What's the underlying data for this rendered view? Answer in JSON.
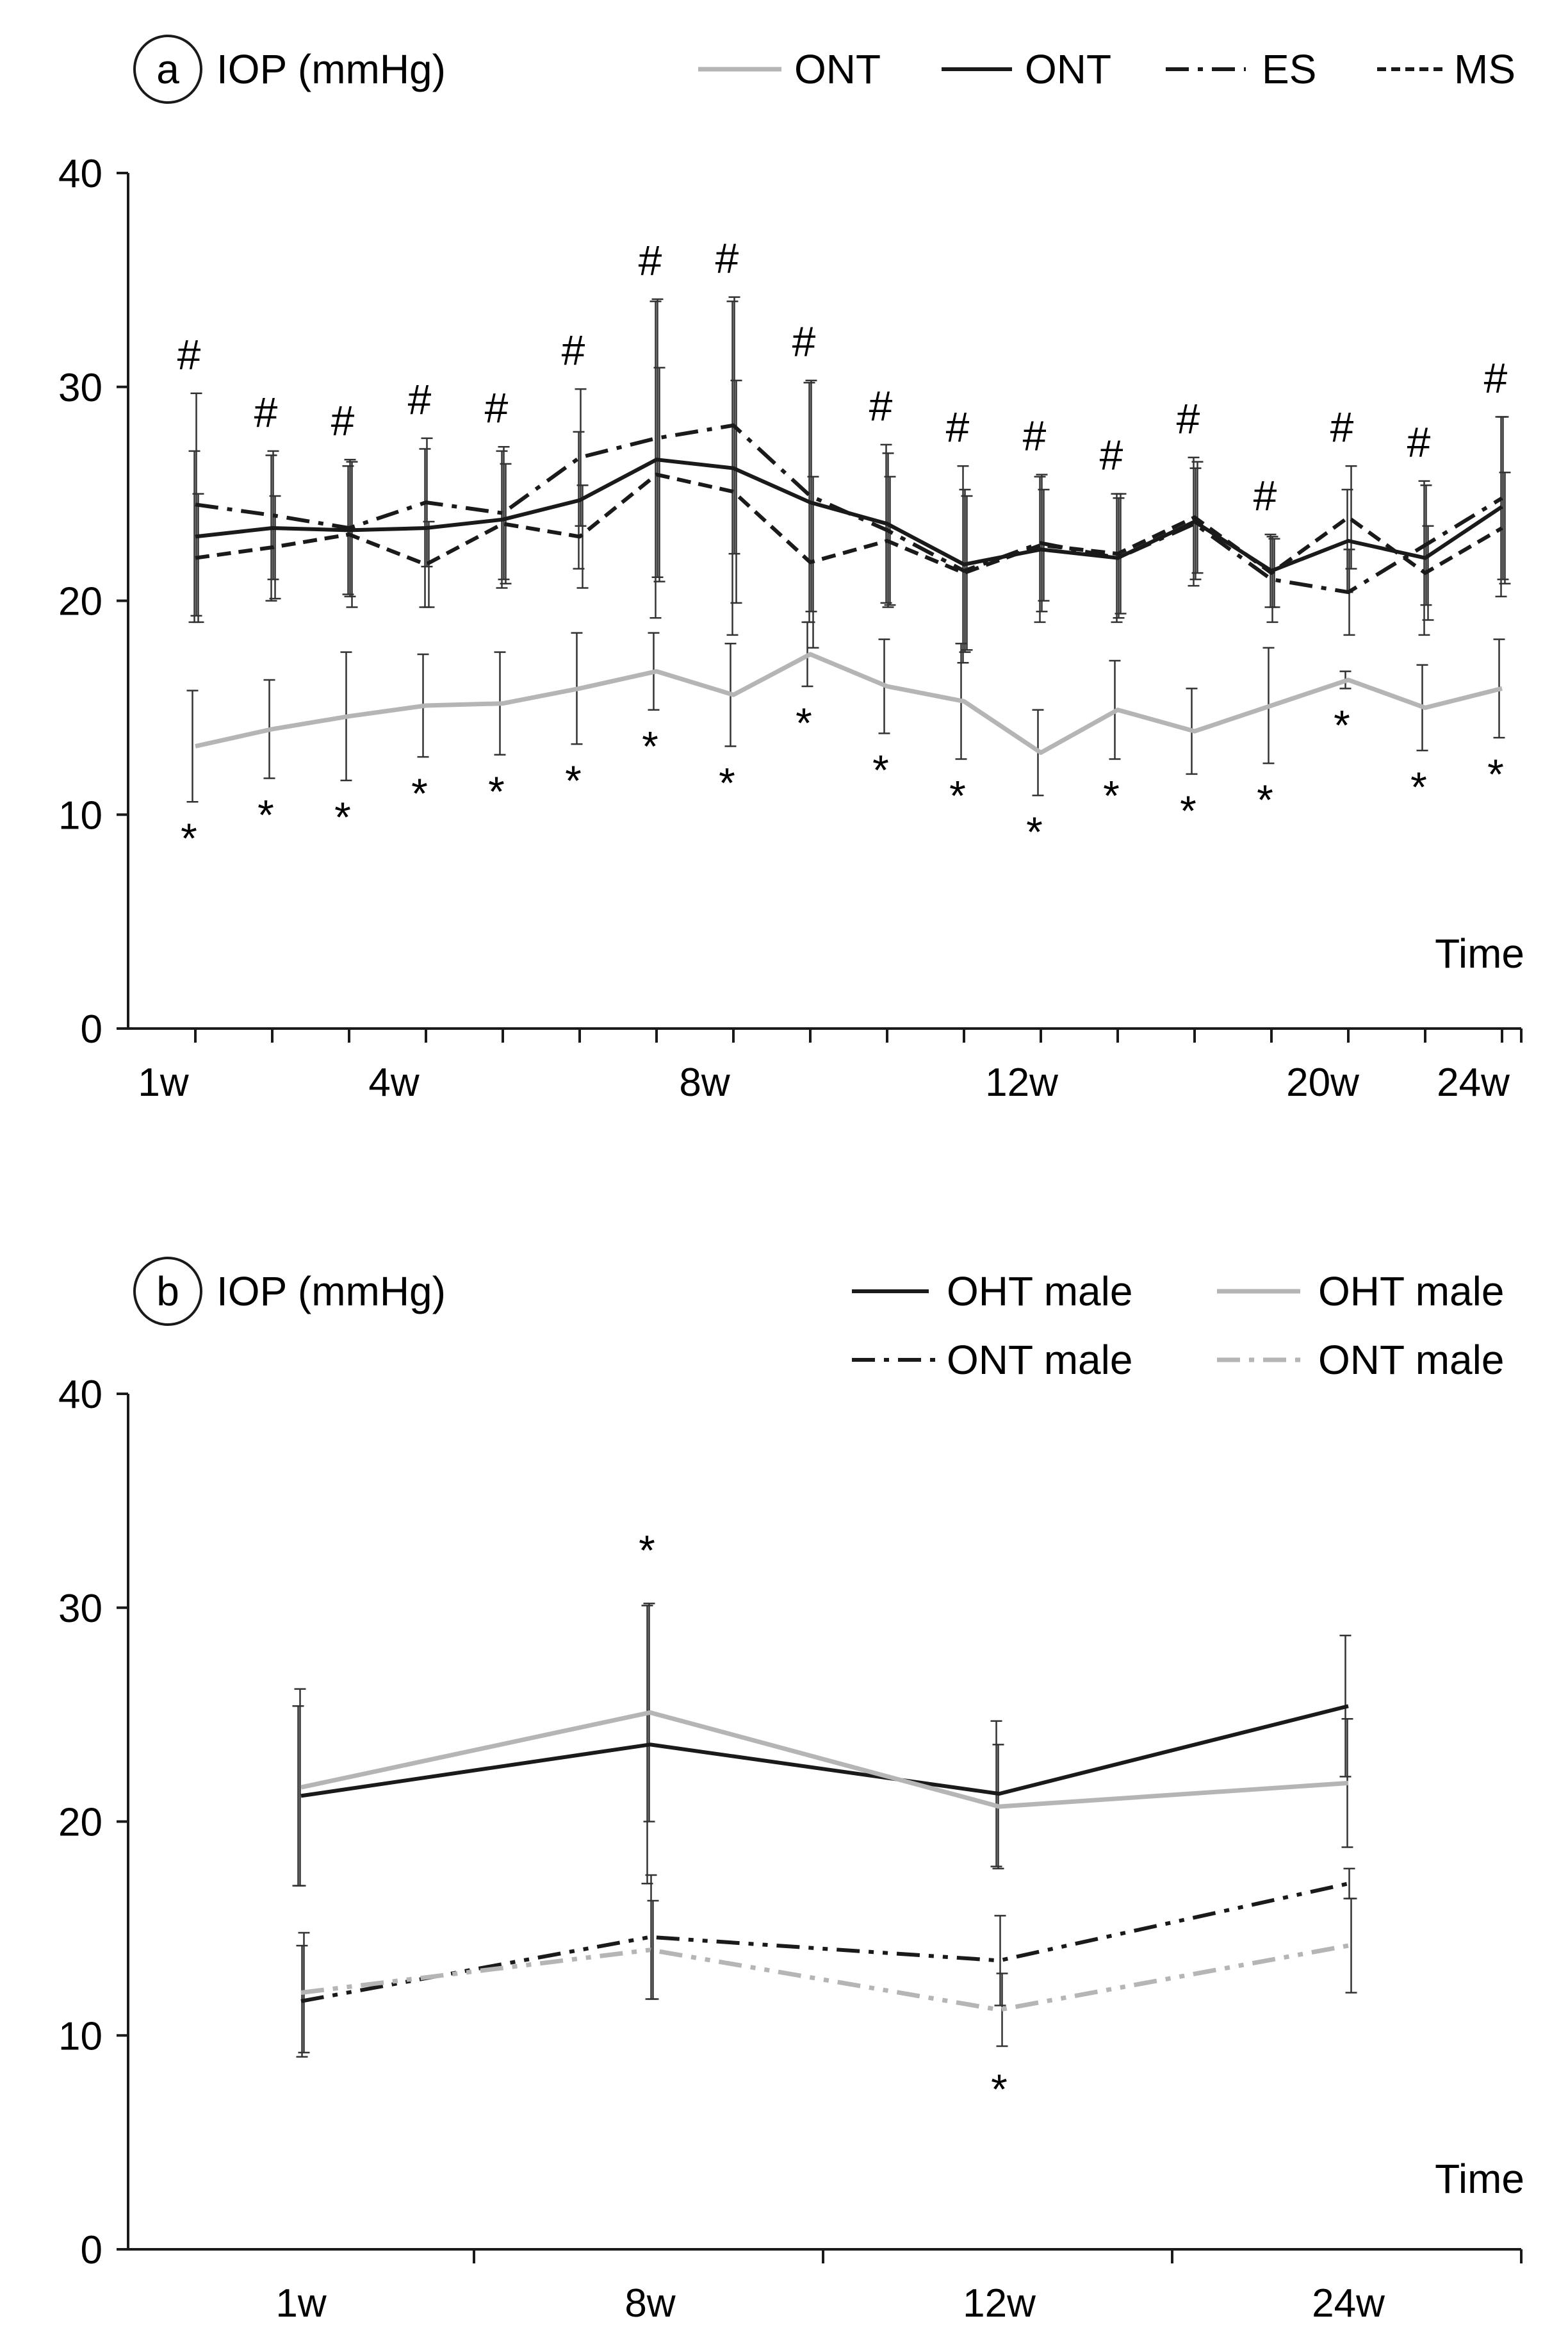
{
  "colors": {
    "black": "#1a1a1a",
    "gray": "#b5b5b5",
    "errorbar": "#333333"
  },
  "chart_data": [
    {
      "type": "line",
      "panel_label": "a",
      "ylabel": "IOP (mmHg)",
      "xlabel": "Time",
      "ylim": [
        0,
        40
      ],
      "yticks": [
        0,
        10,
        20,
        30,
        40
      ],
      "x_tick_labels": [
        "1w",
        "4w",
        "8w",
        "12w",
        "20w",
        "24w"
      ],
      "x": [
        1,
        2,
        3,
        4,
        5,
        6,
        7,
        8,
        9,
        10,
        11,
        12,
        13,
        14,
        15,
        16,
        17,
        18
      ],
      "legend": [
        "ONT",
        "ONT",
        "ES",
        "MS"
      ],
      "series": [
        {
          "name": "ONT",
          "color": "gray",
          "dash": "",
          "values": [
            13.2,
            14.0,
            14.6,
            15.1,
            15.2,
            15.9,
            16.7,
            15.6,
            17.5,
            16.0,
            15.3,
            12.9,
            14.9,
            13.9,
            15.1,
            16.3,
            15.0,
            15.9
          ],
          "errors": [
            2.6,
            2.3,
            3.0,
            2.4,
            2.4,
            2.6,
            1.8,
            2.4,
            1.5,
            2.2,
            2.7,
            2.0,
            2.3,
            2.0,
            2.7,
            0.4,
            2.0,
            2.3
          ]
        },
        {
          "name": "ONT",
          "color": "black",
          "dash": "",
          "values": [
            23.0,
            23.4,
            23.3,
            23.4,
            23.8,
            24.7,
            26.6,
            26.2,
            24.6,
            23.6,
            21.7,
            22.4,
            22.0,
            23.7,
            21.4,
            22.8,
            22.0,
            24.4
          ],
          "errors": [
            4.0,
            3.4,
            3.0,
            3.7,
            3.2,
            3.2,
            7.4,
            7.8,
            5.6,
            3.7,
            4.6,
            3.4,
            3.0,
            3.0,
            1.7,
            2.4,
            3.6,
            4.2
          ]
        },
        {
          "name": "ES",
          "color": "black",
          "dash": "36,14,8,14",
          "values": [
            24.5,
            24.0,
            23.4,
            24.6,
            24.1,
            26.7,
            27.6,
            28.2,
            24.9,
            23.3,
            21.4,
            22.7,
            22.0,
            23.6,
            21.0,
            20.4,
            22.6,
            24.8
          ],
          "errors": [
            5.2,
            3.0,
            3.2,
            3.0,
            3.1,
            3.2,
            6.5,
            6.0,
            5.4,
            3.6,
            3.8,
            3.2,
            2.8,
            2.6,
            2.0,
            2.0,
            2.8,
            3.8
          ]
        },
        {
          "name": "MS",
          "color": "black",
          "dash": "22,12",
          "values": [
            22.0,
            22.5,
            23.1,
            21.7,
            23.6,
            23.0,
            25.9,
            25.1,
            21.8,
            22.8,
            21.3,
            22.6,
            22.2,
            23.9,
            21.3,
            23.9,
            21.3,
            23.4
          ],
          "errors": [
            3.0,
            2.4,
            3.4,
            2.0,
            2.8,
            2.4,
            5.0,
            5.2,
            4.0,
            3.0,
            3.6,
            2.6,
            2.8,
            2.6,
            1.6,
            2.4,
            2.2,
            2.6
          ]
        }
      ],
      "annotations": {
        "hash": "#",
        "star": "*"
      }
    },
    {
      "type": "line",
      "panel_label": "b",
      "ylabel": "IOP (mmHg)",
      "xlabel": "Time",
      "ylim": [
        0,
        40
      ],
      "yticks": [
        0,
        10,
        20,
        30,
        40
      ],
      "x_tick_labels": [
        "1w",
        "8w",
        "12w",
        "24w"
      ],
      "x": [
        1,
        2,
        3,
        4
      ],
      "legend": [
        "OHT male",
        "OHT male",
        "ONT male",
        "ONT male"
      ],
      "series": [
        {
          "name": "OHT male",
          "color": "black",
          "dash": "",
          "values": [
            21.2,
            23.6,
            21.3,
            25.4
          ],
          "errors": [
            4.2,
            6.5,
            3.4,
            3.3
          ]
        },
        {
          "name": "OHT male",
          "color": "gray",
          "dash": "",
          "values": [
            21.6,
            25.1,
            20.7,
            21.8
          ],
          "errors": [
            4.6,
            5.1,
            2.9,
            3.0
          ]
        },
        {
          "name": "ONT male",
          "color": "black",
          "dash": "36,14,8,14,8,14",
          "values": [
            11.6,
            14.6,
            13.5,
            17.1
          ],
          "errors": [
            2.6,
            2.9,
            2.1,
            0.7
          ]
        },
        {
          "name": "ONT male",
          "color": "gray",
          "dash": "36,14,8,14,8,14",
          "values": [
            12.0,
            14.0,
            11.2,
            14.2
          ],
          "errors": [
            2.8,
            2.3,
            1.7,
            2.2
          ]
        }
      ],
      "annotations": {
        "star": "*"
      }
    }
  ]
}
